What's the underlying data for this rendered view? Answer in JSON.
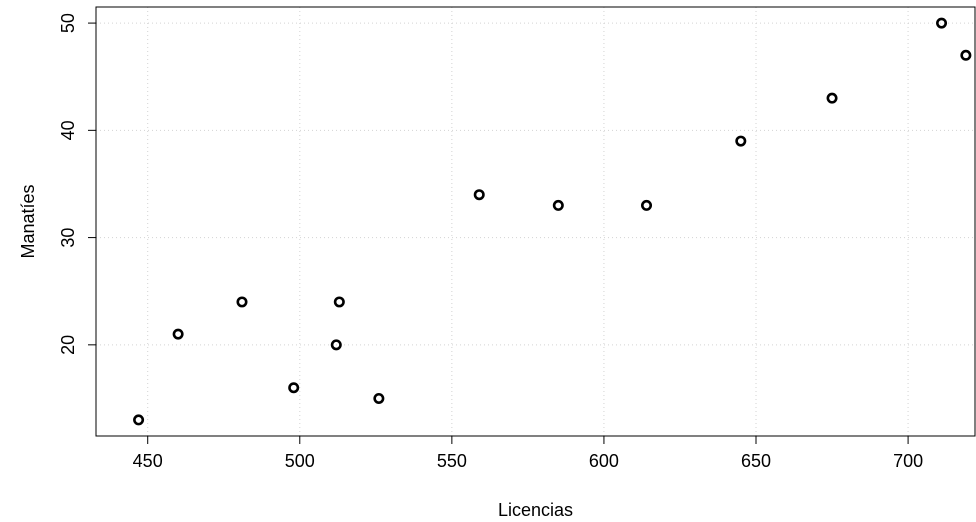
{
  "chart_data": {
    "type": "scatter",
    "title": "",
    "xlabel": "Licencias",
    "ylabel": "Manatíes",
    "xlim": [
      433,
      722
    ],
    "ylim": [
      11.5,
      51.5
    ],
    "xticks": [
      450,
      500,
      550,
      600,
      650,
      700
    ],
    "yticks": [
      20,
      30,
      40,
      50
    ],
    "grid": true,
    "legend": "none",
    "marker": "open-circle",
    "colors": {
      "points": "#000000",
      "grid": "#d3d3d3",
      "axes": "#000000"
    },
    "points": [
      {
        "x": 447,
        "y": 13
      },
      {
        "x": 460,
        "y": 21
      },
      {
        "x": 481,
        "y": 24
      },
      {
        "x": 498,
        "y": 16
      },
      {
        "x": 512,
        "y": 20
      },
      {
        "x": 513,
        "y": 24
      },
      {
        "x": 526,
        "y": 15
      },
      {
        "x": 559,
        "y": 34
      },
      {
        "x": 585,
        "y": 33
      },
      {
        "x": 614,
        "y": 33
      },
      {
        "x": 645,
        "y": 39
      },
      {
        "x": 675,
        "y": 43
      },
      {
        "x": 711,
        "y": 50
      },
      {
        "x": 719,
        "y": 47
      }
    ]
  }
}
